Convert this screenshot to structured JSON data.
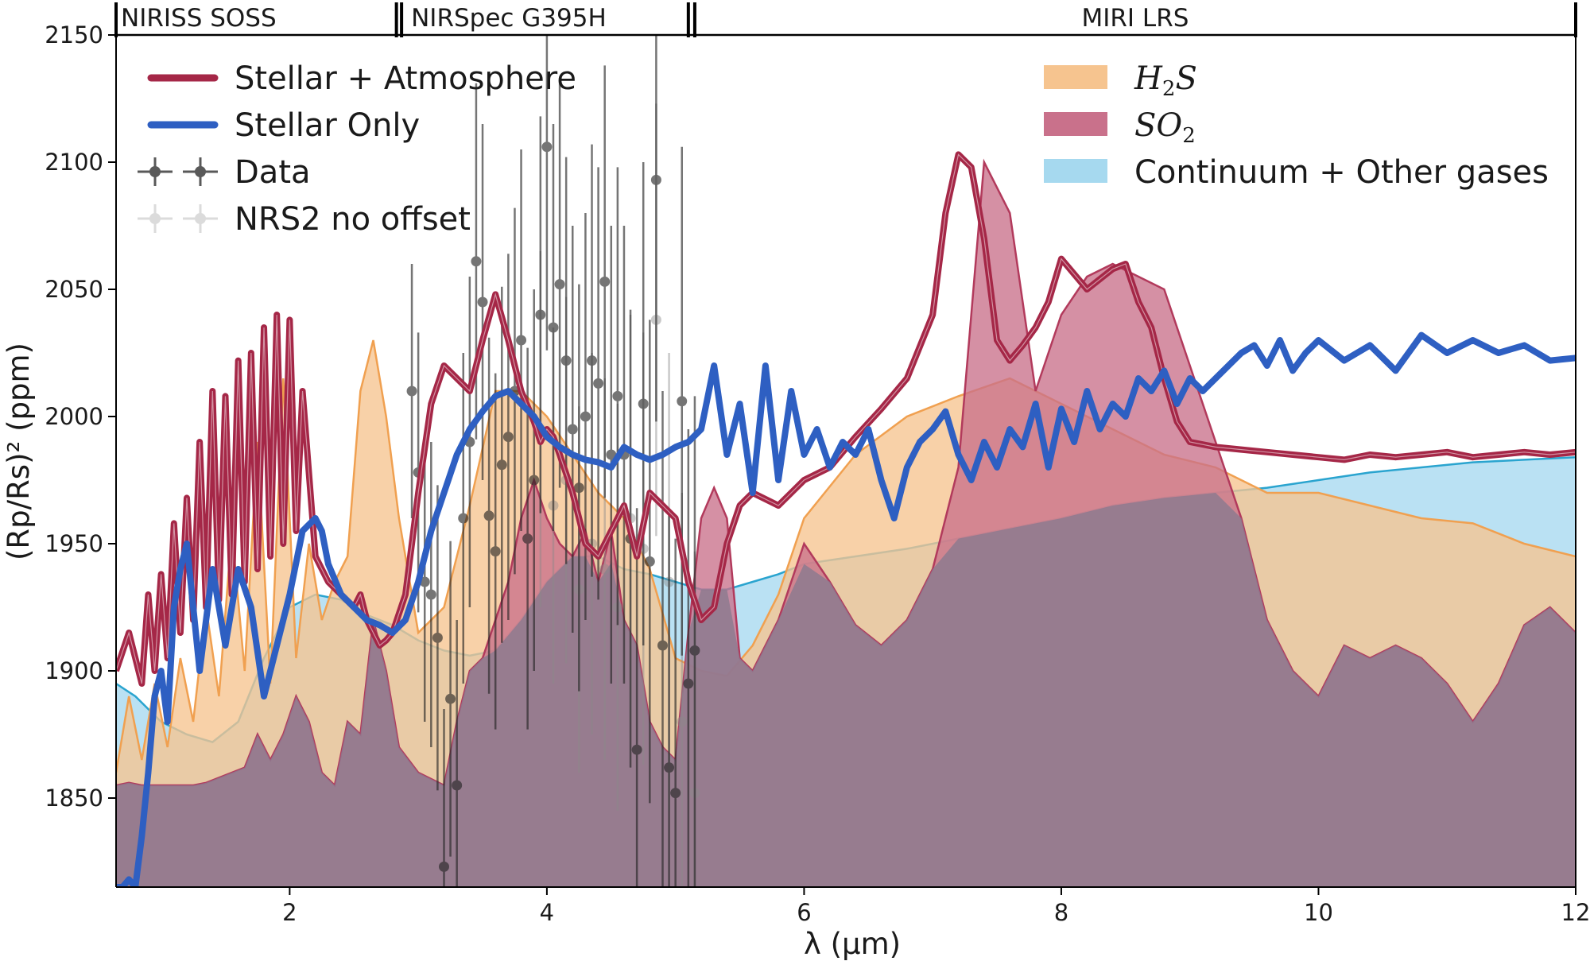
{
  "chart_data": {
    "type": "area",
    "title": "",
    "xlabel": "λ (μm)",
    "ylabel": "(Rp/Rs)² (ppm)",
    "xlim": [
      0.65,
      12.0
    ],
    "ylim": [
      1815,
      2150
    ],
    "x_ticks": [
      2,
      4,
      6,
      8,
      10,
      12
    ],
    "y_ticks": [
      1850,
      1900,
      1950,
      2000,
      2050,
      2100,
      2150
    ],
    "grid": false,
    "instruments": [
      {
        "name": "NIRISS SOSS",
        "range": [
          0.65,
          2.83
        ]
      },
      {
        "name": "NIRSpec G395H",
        "range": [
          2.87,
          5.1
        ]
      },
      {
        "name": "MIRI LRS",
        "range": [
          5.15,
          12.0
        ]
      }
    ],
    "legend_left": [
      {
        "label": "Stellar + Atmosphere",
        "kind": "line",
        "color": "#a52747"
      },
      {
        "label": "Stellar Only",
        "kind": "line",
        "color": "#2e5fc2"
      },
      {
        "label": "Data",
        "kind": "errorbar",
        "color": "#222222"
      },
      {
        "label": "NRS2 no offset",
        "kind": "errorbar-faded",
        "color": "#9a9a9a"
      }
    ],
    "legend_right": [
      {
        "label": "H",
        "sub": "2",
        "tail": "S",
        "kind": "patch",
        "color": "#f6c48f"
      },
      {
        "label": "SO",
        "sub": "2",
        "tail": "",
        "kind": "patch",
        "color": "#c9718b"
      },
      {
        "label": "Continuum + Other gases",
        "kind": "patch",
        "color": "#a6d9ef"
      }
    ],
    "colors": {
      "stellar_atm": "#a52747",
      "stellar_only": "#2e5fc2",
      "h2s_fill": "#f6c48f",
      "h2s_edge": "#f0a050",
      "so2_fill": "#c9718b",
      "so2_edge": "#b23a5c",
      "cont_fill": "#a6d9ef",
      "cont_edge": "#2aa4cf",
      "overlap": "#8d7a8f"
    },
    "series": [
      {
        "name": "Stellar + Atmosphere",
        "x": [
          0.65,
          0.75,
          0.85,
          0.9,
          0.95,
          1.0,
          1.05,
          1.1,
          1.15,
          1.2,
          1.25,
          1.3,
          1.35,
          1.4,
          1.45,
          1.5,
          1.55,
          1.6,
          1.65,
          1.7,
          1.75,
          1.8,
          1.85,
          1.9,
          1.95,
          2.0,
          2.05,
          2.1,
          2.2,
          2.3,
          2.4,
          2.5,
          2.55,
          2.6,
          2.65,
          2.7,
          2.75,
          2.8,
          2.9,
          3.0,
          3.1,
          3.2,
          3.3,
          3.4,
          3.5,
          3.6,
          3.7,
          3.8,
          3.9,
          3.95,
          4.0,
          4.05,
          4.1,
          4.2,
          4.3,
          4.4,
          4.5,
          4.6,
          4.7,
          4.8,
          4.9,
          5.0,
          5.1,
          5.2,
          5.3,
          5.4,
          5.5,
          5.6,
          5.8,
          6.0,
          6.2,
          6.4,
          6.6,
          6.8,
          7.0,
          7.1,
          7.2,
          7.3,
          7.4,
          7.5,
          7.6,
          7.7,
          7.8,
          7.9,
          8.0,
          8.2,
          8.4,
          8.5,
          8.6,
          8.7,
          8.8,
          8.9,
          9.0,
          9.2,
          9.4,
          9.6,
          9.8,
          10.0,
          10.2,
          10.4,
          10.6,
          10.8,
          11.0,
          11.2,
          11.4,
          11.6,
          11.8,
          12.0
        ],
        "y": [
          1900,
          1915,
          1895,
          1930,
          1900,
          1938,
          1905,
          1958,
          1915,
          1968,
          1920,
          1990,
          1925,
          2010,
          1928,
          2008,
          1930,
          2022,
          1935,
          2025,
          1940,
          2035,
          1945,
          2040,
          1950,
          2038,
          1955,
          2010,
          1945,
          1935,
          1930,
          1925,
          1930,
          1920,
          1915,
          1910,
          1912,
          1915,
          1930,
          1970,
          2005,
          2020,
          2015,
          2010,
          2030,
          2048,
          2030,
          2010,
          1998,
          1990,
          1995,
          1992,
          1985,
          1970,
          1950,
          1945,
          1955,
          1965,
          1945,
          1970,
          1965,
          1960,
          1935,
          1920,
          1925,
          1950,
          1965,
          1970,
          1965,
          1975,
          1980,
          1992,
          2003,
          2015,
          2040,
          2080,
          2103,
          2098,
          2070,
          2030,
          2022,
          2028,
          2035,
          2045,
          2062,
          2050,
          2058,
          2060,
          2045,
          2035,
          2015,
          1998,
          1990,
          1988,
          1987,
          1986,
          1985,
          1984,
          1983,
          1985,
          1984,
          1985,
          1986,
          1984,
          1985,
          1986,
          1985,
          1986
        ]
      },
      {
        "name": "Stellar Only",
        "x": [
          0.65,
          0.7,
          0.75,
          0.8,
          0.85,
          0.9,
          0.95,
          1.0,
          1.05,
          1.1,
          1.15,
          1.2,
          1.3,
          1.4,
          1.5,
          1.6,
          1.7,
          1.8,
          1.9,
          2.0,
          2.1,
          2.2,
          2.25,
          2.3,
          2.4,
          2.5,
          2.6,
          2.7,
          2.8,
          2.9,
          3.0,
          3.1,
          3.2,
          3.3,
          3.4,
          3.5,
          3.6,
          3.7,
          3.8,
          3.9,
          4.0,
          4.1,
          4.2,
          4.3,
          4.4,
          4.5,
          4.6,
          4.7,
          4.8,
          4.9,
          5.0,
          5.1,
          5.2,
          5.3,
          5.4,
          5.5,
          5.6,
          5.7,
          5.8,
          5.9,
          6.0,
          6.1,
          6.2,
          6.3,
          6.4,
          6.5,
          6.6,
          6.7,
          6.8,
          6.9,
          7.0,
          7.1,
          7.2,
          7.3,
          7.4,
          7.5,
          7.6,
          7.7,
          7.8,
          7.9,
          8.0,
          8.1,
          8.2,
          8.3,
          8.4,
          8.5,
          8.6,
          8.7,
          8.8,
          8.9,
          9.0,
          9.1,
          9.2,
          9.3,
          9.4,
          9.5,
          9.6,
          9.7,
          9.8,
          9.9,
          10.0,
          10.2,
          10.4,
          10.6,
          10.8,
          11.0,
          11.2,
          11.4,
          11.6,
          11.8,
          12.0
        ],
        "y": [
          1815,
          1812,
          1818,
          1815,
          1835,
          1860,
          1890,
          1900,
          1880,
          1925,
          1940,
          1950,
          1900,
          1940,
          1910,
          1940,
          1925,
          1890,
          1910,
          1930,
          1955,
          1960,
          1955,
          1942,
          1930,
          1925,
          1920,
          1918,
          1915,
          1920,
          1935,
          1955,
          1970,
          1985,
          1995,
          2002,
          2008,
          2010,
          2005,
          2000,
          1992,
          1988,
          1985,
          1983,
          1982,
          1980,
          1988,
          1985,
          1983,
          1985,
          1988,
          1990,
          1995,
          2020,
          1985,
          2005,
          1970,
          2020,
          1975,
          2010,
          1985,
          1995,
          1980,
          1990,
          1985,
          1995,
          1975,
          1960,
          1980,
          1990,
          1995,
          2002,
          1985,
          1975,
          1990,
          1980,
          1995,
          1988,
          2005,
          1980,
          2003,
          1990,
          2010,
          1995,
          2005,
          2000,
          2015,
          2010,
          2018,
          2005,
          2015,
          2010,
          2015,
          2020,
          2025,
          2028,
          2020,
          2030,
          2018,
          2025,
          2030,
          2022,
          2028,
          2018,
          2032,
          2025,
          2030,
          2025,
          2028,
          2022,
          2023
        ]
      },
      {
        "name": "H2S",
        "x": [
          0.65,
          0.75,
          0.85,
          0.95,
          1.05,
          1.15,
          1.25,
          1.35,
          1.45,
          1.55,
          1.65,
          1.75,
          1.85,
          1.95,
          2.05,
          2.15,
          2.25,
          2.35,
          2.45,
          2.55,
          2.65,
          2.75,
          2.85,
          3.0,
          3.2,
          3.4,
          3.6,
          3.8,
          4.0,
          4.2,
          4.4,
          4.6,
          4.8,
          5.0,
          5.2,
          5.4,
          5.6,
          5.8,
          6.0,
          6.4,
          6.8,
          7.2,
          7.6,
          8.0,
          8.4,
          8.8,
          9.2,
          9.6,
          10.0,
          10.4,
          10.8,
          11.2,
          11.6,
          12.0
        ],
        "y": [
          1860,
          1890,
          1865,
          1895,
          1870,
          1905,
          1880,
          1925,
          1890,
          1955,
          1900,
          1990,
          1895,
          2015,
          1905,
          1950,
          1920,
          1935,
          1945,
          2010,
          2030,
          2000,
          1960,
          1915,
          1925,
          1965,
          2010,
          2010,
          2000,
          1985,
          1970,
          1960,
          1940,
          1905,
          1900,
          1898,
          1910,
          1930,
          1960,
          1985,
          2000,
          2008,
          2015,
          2005,
          1995,
          1985,
          1980,
          1970,
          1970,
          1965,
          1960,
          1958,
          1950,
          1945
        ]
      },
      {
        "name": "SO2",
        "x": [
          0.65,
          0.75,
          0.85,
          0.95,
          1.05,
          1.15,
          1.25,
          1.35,
          1.45,
          1.55,
          1.65,
          1.75,
          1.85,
          1.95,
          2.05,
          2.15,
          2.25,
          2.35,
          2.45,
          2.55,
          2.65,
          2.75,
          2.85,
          3.0,
          3.2,
          3.3,
          3.4,
          3.5,
          3.6,
          3.7,
          3.8,
          3.9,
          4.0,
          4.1,
          4.2,
          4.3,
          4.4,
          4.5,
          4.6,
          4.7,
          4.8,
          4.9,
          5.0,
          5.1,
          5.2,
          5.3,
          5.4,
          5.5,
          5.6,
          5.8,
          6.0,
          6.2,
          6.4,
          6.6,
          6.8,
          7.0,
          7.2,
          7.4,
          7.6,
          7.8,
          8.0,
          8.2,
          8.4,
          8.6,
          8.8,
          9.0,
          9.2,
          9.4,
          9.6,
          9.8,
          10.0,
          10.2,
          10.4,
          10.6,
          10.8,
          11.0,
          11.2,
          11.4,
          11.6,
          11.8,
          12.0
        ],
        "y": [
          1855,
          1856,
          1855,
          1855,
          1855,
          1855,
          1855,
          1856,
          1858,
          1860,
          1862,
          1875,
          1865,
          1875,
          1890,
          1880,
          1860,
          1855,
          1880,
          1875,
          1920,
          1900,
          1870,
          1860,
          1855,
          1880,
          1900,
          1905,
          1920,
          1935,
          1960,
          1975,
          1960,
          1950,
          1945,
          1955,
          1935,
          1955,
          1920,
          1910,
          1880,
          1870,
          1865,
          1915,
          1960,
          1972,
          1960,
          1905,
          1900,
          1920,
          1950,
          1935,
          1918,
          1910,
          1920,
          1940,
          1980,
          2100,
          2080,
          2010,
          2040,
          2055,
          2060,
          2055,
          2050,
          2020,
          1990,
          1960,
          1920,
          1900,
          1890,
          1910,
          1905,
          1910,
          1905,
          1895,
          1880,
          1895,
          1918,
          1925,
          1915
        ]
      },
      {
        "name": "Continuum + Other gases",
        "x": [
          0.65,
          0.8,
          1.0,
          1.2,
          1.4,
          1.6,
          1.8,
          2.0,
          2.2,
          2.4,
          2.6,
          2.8,
          3.0,
          3.2,
          3.4,
          3.6,
          3.8,
          4.0,
          4.2,
          4.4,
          4.6,
          4.8,
          5.0,
          5.2,
          5.4,
          5.6,
          5.8,
          6.0,
          6.4,
          6.8,
          7.2,
          7.6,
          8.0,
          8.4,
          8.8,
          9.2,
          9.6,
          10.0,
          10.4,
          10.8,
          11.2,
          11.6,
          12.0
        ],
        "y": [
          1895,
          1890,
          1880,
          1875,
          1872,
          1880,
          1905,
          1925,
          1930,
          1928,
          1922,
          1918,
          1912,
          1908,
          1906,
          1908,
          1920,
          1935,
          1945,
          1945,
          1940,
          1938,
          1935,
          1932,
          1932,
          1935,
          1938,
          1942,
          1945,
          1948,
          1952,
          1956,
          1960,
          1965,
          1968,
          1970,
          1972,
          1975,
          1978,
          1980,
          1982,
          1983,
          1984
        ]
      }
    ],
    "data_points": {
      "name": "Data",
      "x": [
        2.95,
        3.0,
        3.05,
        3.1,
        3.15,
        3.2,
        3.25,
        3.3,
        3.35,
        3.4,
        3.45,
        3.5,
        3.55,
        3.6,
        3.65,
        3.7,
        3.75,
        3.8,
        3.85,
        3.9,
        3.95,
        4.0,
        4.05,
        4.1,
        4.15,
        4.2,
        4.25,
        4.3,
        4.35,
        4.4,
        4.45,
        4.5,
        4.55,
        4.6,
        4.65,
        4.7,
        4.75,
        4.8,
        4.85,
        4.9,
        4.95,
        5.0,
        5.05,
        5.1,
        5.15
      ],
      "y": [
        2010,
        1978,
        1935,
        1930,
        1913,
        1823,
        1889,
        1855,
        1960,
        1990,
        2061,
        2045,
        1961,
        1947,
        1981,
        1992,
        2010,
        2030,
        1952,
        1975,
        2040,
        2106,
        2035,
        2052,
        2022,
        1995,
        1972,
        2000,
        2022,
        2013,
        2053,
        1985,
        2008,
        1985,
        1952,
        1869,
        2005,
        1943,
        2093,
        1910,
        1862,
        1852,
        2006,
        1895,
        1908
      ],
      "err": [
        50,
        55,
        55,
        60,
        60,
        62,
        62,
        65,
        65,
        65,
        70,
        70,
        70,
        70,
        70,
        72,
        72,
        75,
        75,
        75,
        78,
        80,
        80,
        80,
        80,
        80,
        80,
        80,
        85,
        85,
        85,
        90,
        90,
        90,
        90,
        95,
        95,
        95,
        95,
        100,
        100,
        100,
        100,
        100,
        100
      ]
    },
    "nrs2_no_offset": {
      "name": "NRS2 no offset",
      "x": [
        3.95,
        4.05,
        4.15,
        4.25,
        4.35,
        4.45,
        4.55,
        4.65,
        4.75,
        4.85,
        4.95,
        5.05,
        5.15
      ],
      "y": [
        1995,
        1965,
        1975,
        1932,
        1950,
        1940,
        1925,
        1960,
        1948,
        2038,
        1935,
        1880,
        1852
      ],
      "err": [
        70,
        70,
        72,
        72,
        75,
        75,
        80,
        80,
        85,
        85,
        90,
        90,
        95
      ]
    }
  }
}
